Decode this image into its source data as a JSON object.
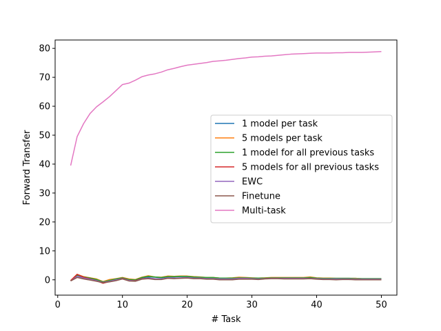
{
  "chart_data": {
    "type": "line",
    "xlabel": "# Task",
    "ylabel": "Forward Transfer",
    "xlim": [
      -0.4,
      52.4
    ],
    "ylim": [
      -5.3,
      82.9
    ],
    "xticks": [
      0,
      10,
      20,
      30,
      40,
      50
    ],
    "yticks": [
      0,
      10,
      20,
      30,
      40,
      50,
      60,
      70,
      80
    ],
    "grid": false,
    "legend_position": "center-right",
    "x": [
      2,
      3,
      4,
      5,
      6,
      7,
      8,
      9,
      10,
      11,
      12,
      13,
      14,
      15,
      16,
      17,
      18,
      19,
      20,
      21,
      22,
      23,
      24,
      25,
      26,
      27,
      28,
      29,
      30,
      31,
      32,
      33,
      34,
      35,
      36,
      37,
      38,
      39,
      40,
      41,
      42,
      43,
      44,
      45,
      46,
      47,
      48,
      49,
      50
    ],
    "series": [
      {
        "name": "1 model per task",
        "color": "#1f77b4",
        "values": [
          -0.3,
          1.6,
          0.9,
          0.5,
          0.0,
          -0.6,
          -0.3,
          0.2,
          0.6,
          0.1,
          0.0,
          0.7,
          1.0,
          0.9,
          0.7,
          1.0,
          1.0,
          1.1,
          1.1,
          0.9,
          0.8,
          0.7,
          0.7,
          0.6,
          0.6,
          0.5,
          0.6,
          0.7,
          0.6,
          0.5,
          0.5,
          0.6,
          0.6,
          0.6,
          0.6,
          0.6,
          0.7,
          0.7,
          0.6,
          0.5,
          0.5,
          0.5,
          0.5,
          0.5,
          0.5,
          0.4,
          0.4,
          0.4,
          0.4
        ]
      },
      {
        "name": "5 models per task",
        "color": "#ff7f0e",
        "values": [
          -0.2,
          1.9,
          1.1,
          0.7,
          0.3,
          -0.6,
          0.1,
          0.4,
          0.8,
          0.3,
          0.1,
          0.9,
          1.4,
          1.0,
          0.9,
          1.3,
          1.2,
          1.3,
          1.3,
          1.1,
          1.0,
          0.8,
          0.8,
          0.6,
          0.6,
          0.7,
          0.9,
          0.8,
          0.7,
          0.6,
          0.7,
          0.8,
          0.8,
          0.8,
          0.8,
          0.8,
          0.8,
          1.0,
          0.7,
          0.6,
          0.6,
          0.5,
          0.5,
          0.5,
          0.5,
          0.4,
          0.4,
          0.4,
          0.4
        ]
      },
      {
        "name": "1 model for all previous tasks",
        "color": "#2ca02c",
        "values": [
          -0.3,
          1.7,
          1.0,
          0.6,
          0.1,
          -0.7,
          -0.2,
          0.3,
          0.7,
          0.1,
          0.0,
          0.8,
          1.2,
          1.0,
          0.8,
          1.1,
          1.1,
          1.2,
          1.2,
          1.0,
          0.9,
          0.8,
          0.8,
          0.6,
          0.6,
          0.6,
          0.7,
          0.7,
          0.6,
          0.6,
          0.6,
          0.7,
          0.7,
          0.7,
          0.7,
          0.7,
          0.7,
          0.8,
          0.6,
          0.5,
          0.5,
          0.5,
          0.5,
          0.5,
          0.4,
          0.4,
          0.4,
          0.4,
          0.4
        ]
      },
      {
        "name": "5 models for all previous tasks",
        "color": "#d62728",
        "values": [
          -0.3,
          1.9,
          0.9,
          0.3,
          -0.3,
          -1.2,
          -0.6,
          -0.1,
          0.5,
          -0.2,
          -0.3,
          0.4,
          0.6,
          0.3,
          0.2,
          0.6,
          0.5,
          0.6,
          0.7,
          0.5,
          0.5,
          0.3,
          0.3,
          0.1,
          0.1,
          0.1,
          0.3,
          0.3,
          0.3,
          0.2,
          0.4,
          0.5,
          0.5,
          0.4,
          0.4,
          0.4,
          0.4,
          0.5,
          0.3,
          0.2,
          0.2,
          0.1,
          0.2,
          0.2,
          0.1,
          0.1,
          0.1,
          0.1,
          0.1
        ]
      },
      {
        "name": "EWC",
        "color": "#9467bd",
        "values": [
          -0.4,
          1.2,
          0.6,
          0.2,
          -0.3,
          -0.9,
          -0.5,
          0.0,
          0.4,
          -0.2,
          -0.4,
          0.3,
          0.6,
          0.4,
          0.3,
          0.7,
          0.6,
          0.7,
          0.8,
          0.6,
          0.6,
          0.4,
          0.4,
          0.3,
          0.3,
          0.3,
          0.5,
          0.5,
          0.4,
          0.3,
          0.4,
          0.5,
          0.5,
          0.5,
          0.5,
          0.5,
          0.5,
          0.5,
          0.4,
          0.3,
          0.3,
          0.3,
          0.3,
          0.3,
          0.2,
          0.2,
          0.2,
          0.2,
          0.2
        ]
      },
      {
        "name": "Finetune",
        "color": "#8c564b",
        "values": [
          -0.4,
          0.8,
          0.3,
          -0.1,
          -0.5,
          -1.0,
          -0.7,
          -0.3,
          0.3,
          -0.4,
          -0.5,
          0.2,
          0.4,
          0.1,
          0.1,
          0.5,
          0.4,
          0.5,
          0.6,
          0.4,
          0.4,
          0.2,
          0.2,
          0.0,
          0.0,
          0.0,
          0.2,
          0.2,
          0.2,
          0.1,
          0.3,
          0.4,
          0.4,
          0.3,
          0.3,
          0.3,
          0.3,
          0.4,
          0.2,
          0.1,
          0.1,
          0.0,
          0.1,
          0.1,
          0.0,
          0.0,
          0.0,
          0.0,
          0.0
        ]
      },
      {
        "name": "Multi-task",
        "color": "#e377c2",
        "values": [
          39.5,
          49.5,
          54.0,
          57.5,
          59.8,
          61.5,
          63.3,
          65.4,
          67.5,
          68.0,
          69.0,
          70.2,
          70.8,
          71.2,
          71.8,
          72.6,
          73.1,
          73.7,
          74.2,
          74.5,
          74.8,
          75.1,
          75.5,
          75.7,
          75.9,
          76.2,
          76.5,
          76.7,
          77.0,
          77.1,
          77.3,
          77.4,
          77.6,
          77.8,
          78.0,
          78.1,
          78.2,
          78.3,
          78.4,
          78.4,
          78.4,
          78.5,
          78.5,
          78.6,
          78.6,
          78.6,
          78.7,
          78.8,
          78.9
        ]
      }
    ]
  }
}
